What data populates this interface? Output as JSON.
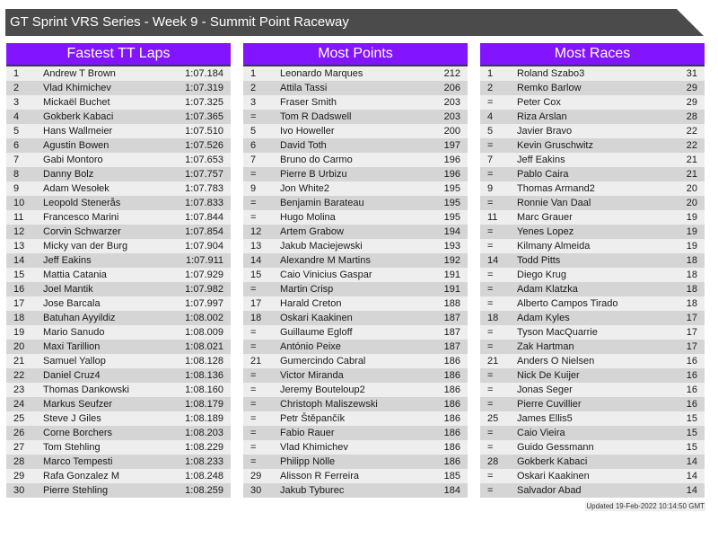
{
  "header": {
    "title": "GT Sprint VRS Series - Week 9 - Summit Point Raceway"
  },
  "colors": {
    "header_bg": "#4b4b4b",
    "accent": "#8214ff",
    "row_light": "#eeeeee",
    "row_dark": "#d5d5d5"
  },
  "panels": [
    {
      "title": "Fastest TT Laps",
      "rows": [
        [
          "1",
          "Andrew T Brown",
          "1:07.184"
        ],
        [
          "2",
          "Vlad Khimichev",
          "1:07.319"
        ],
        [
          "3",
          "Mickaël Buchet",
          "1:07.325"
        ],
        [
          "4",
          "Gokberk Kabaci",
          "1:07.365"
        ],
        [
          "5",
          "Hans Wallmeier",
          "1:07.510"
        ],
        [
          "6",
          "Agustin Bowen",
          "1:07.526"
        ],
        [
          "7",
          "Gabi Montoro",
          "1:07.653"
        ],
        [
          "8",
          "Danny Bolz",
          "1:07.757"
        ],
        [
          "9",
          "Adam Wesołek",
          "1:07.783"
        ],
        [
          "10",
          "Leopold Stenerås",
          "1:07.833"
        ],
        [
          "11",
          "Francesco Marini",
          "1:07.844"
        ],
        [
          "12",
          "Corvin Schwarzer",
          "1:07.854"
        ],
        [
          "13",
          "Micky van der Burg",
          "1:07.904"
        ],
        [
          "14",
          "Jeff Eakins",
          "1:07.911"
        ],
        [
          "15",
          "Mattia Catania",
          "1:07.929"
        ],
        [
          "16",
          "Joel Mantik",
          "1:07.982"
        ],
        [
          "17",
          "Jose Barcala",
          "1:07.997"
        ],
        [
          "18",
          "Batuhan Ayyildiz",
          "1:08.002"
        ],
        [
          "19",
          "Mario Sanudo",
          "1:08.009"
        ],
        [
          "20",
          "Maxi Tarillion",
          "1:08.021"
        ],
        [
          "21",
          "Samuel Yallop",
          "1:08.128"
        ],
        [
          "22",
          "Daniel Cruz4",
          "1:08.136"
        ],
        [
          "23",
          "Thomas Dankowski",
          "1:08.160"
        ],
        [
          "24",
          "Markus Seufzer",
          "1:08.179"
        ],
        [
          "25",
          "Steve J Giles",
          "1:08.189"
        ],
        [
          "26",
          "Corne Borchers",
          "1:08.203"
        ],
        [
          "27",
          "Tom Stehling",
          "1:08.229"
        ],
        [
          "28",
          "Marco Tempesti",
          "1:08.233"
        ],
        [
          "29",
          "Rafa Gonzalez M",
          "1:08.248"
        ],
        [
          "30",
          "Pierre Stehling",
          "1:08.259"
        ]
      ]
    },
    {
      "title": "Most Points",
      "rows": [
        [
          "1",
          "Leonardo Marques",
          "212"
        ],
        [
          "2",
          "Attila Tassi",
          "206"
        ],
        [
          "3",
          "Fraser Smith",
          "203"
        ],
        [
          "=",
          "Tom R Dadswell",
          "203"
        ],
        [
          "5",
          "Ivo Howeller",
          "200"
        ],
        [
          "6",
          "David Toth",
          "197"
        ],
        [
          "7",
          "Bruno do Carmo",
          "196"
        ],
        [
          "=",
          "Pierre B Urbizu",
          "196"
        ],
        [
          "9",
          "Jon White2",
          "195"
        ],
        [
          "=",
          "Benjamin Barateau",
          "195"
        ],
        [
          "=",
          "Hugo Molina",
          "195"
        ],
        [
          "12",
          "Artem Grabow",
          "194"
        ],
        [
          "13",
          "Jakub Maciejewski",
          "193"
        ],
        [
          "14",
          "Alexandre M Martins",
          "192"
        ],
        [
          "15",
          "Caio Vinicius Gaspar",
          "191"
        ],
        [
          "=",
          "Martin Crisp",
          "191"
        ],
        [
          "17",
          "Harald Creton",
          "188"
        ],
        [
          "18",
          "Oskari Kaakinen",
          "187"
        ],
        [
          "=",
          "Guillaume Egloff",
          "187"
        ],
        [
          "=",
          "António Peixe",
          "187"
        ],
        [
          "21",
          "Gumercindo Cabral",
          "186"
        ],
        [
          "=",
          "Victor Miranda",
          "186"
        ],
        [
          "=",
          "Jeremy Bouteloup2",
          "186"
        ],
        [
          "=",
          "Christoph Maliszewski",
          "186"
        ],
        [
          "=",
          "Petr Štěpančík",
          "186"
        ],
        [
          "=",
          "Fabio Rauer",
          "186"
        ],
        [
          "=",
          "Vlad Khimichev",
          "186"
        ],
        [
          "=",
          "Philipp Nölle",
          "186"
        ],
        [
          "29",
          "Alisson R Ferreira",
          "185"
        ],
        [
          "30",
          "Jakub Tyburec",
          "184"
        ]
      ]
    },
    {
      "title": "Most Races",
      "rows": [
        [
          "1",
          "Roland Szabo3",
          "31"
        ],
        [
          "2",
          "Remko Barlow",
          "29"
        ],
        [
          "=",
          "Peter Cox",
          "29"
        ],
        [
          "4",
          "Riza Arslan",
          "28"
        ],
        [
          "5",
          "Javier Bravo",
          "22"
        ],
        [
          "=",
          "Kevin Gruschwitz",
          "22"
        ],
        [
          "7",
          "Jeff Eakins",
          "21"
        ],
        [
          "=",
          "Pablo Caira",
          "21"
        ],
        [
          "9",
          "Thomas Armand2",
          "20"
        ],
        [
          "=",
          "Ronnie Van Daal",
          "20"
        ],
        [
          "11",
          "Marc Grauer",
          "19"
        ],
        [
          "=",
          "Yenes Lopez",
          "19"
        ],
        [
          "=",
          "Kilmany Almeida",
          "19"
        ],
        [
          "14",
          "Todd Pitts",
          "18"
        ],
        [
          "=",
          "Diego Krug",
          "18"
        ],
        [
          "=",
          "Adam Klatzka",
          "18"
        ],
        [
          "=",
          "Alberto Campos Tirado",
          "18"
        ],
        [
          "18",
          "Adam Kyles",
          "17"
        ],
        [
          "=",
          "Tyson MacQuarrie",
          "17"
        ],
        [
          "=",
          "Zak Hartman",
          "17"
        ],
        [
          "21",
          "Anders O Nielsen",
          "16"
        ],
        [
          "=",
          "Nick De Kuijer",
          "16"
        ],
        [
          "=",
          "Jonas Seger",
          "16"
        ],
        [
          "=",
          "Pierre Cuvillier",
          "16"
        ],
        [
          "25",
          "James Ellis5",
          "15"
        ],
        [
          "=",
          "Caio Vieira",
          "15"
        ],
        [
          "=",
          "Guido Gessmann",
          "15"
        ],
        [
          "28",
          "Gokberk Kabaci",
          "14"
        ],
        [
          "=",
          "Oskari Kaakinen",
          "14"
        ],
        [
          "=",
          "Salvador Abad",
          "14"
        ]
      ]
    }
  ],
  "footer": {
    "updated": "Updated 19-Feb-2022 10:14:50 GMT"
  }
}
